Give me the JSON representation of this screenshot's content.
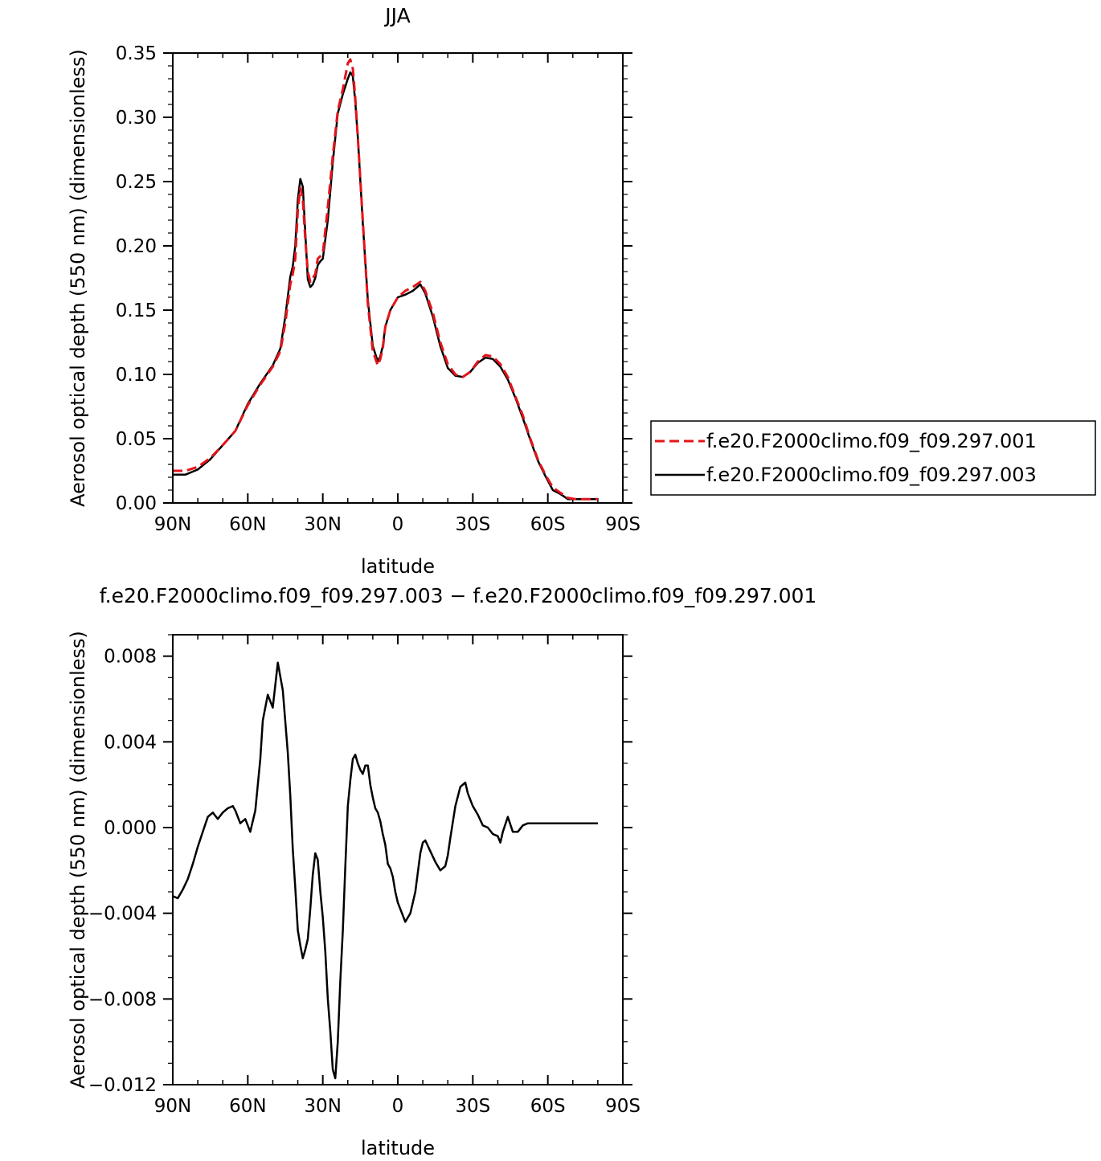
{
  "chart_data": [
    {
      "type": "line",
      "title": "JJA",
      "xlabel": "latitude",
      "ylabel": "Aerosol optical depth (550 nm) (dimensionless)",
      "xlim": [
        90,
        -90
      ],
      "ylim": [
        0,
        0.35
      ],
      "xtick_values": [
        90,
        60,
        30,
        0,
        -30,
        -60,
        -90
      ],
      "xtick_labels": [
        "90N",
        "60N",
        "30N",
        "0",
        "30S",
        "60S",
        "90S"
      ],
      "ytick_values": [
        0,
        0.05,
        0.1,
        0.15,
        0.2,
        0.25,
        0.3,
        0.35
      ],
      "ytick_labels": [
        "0.00",
        "0.05",
        "0.10",
        "0.15",
        "0.20",
        "0.25",
        "0.30",
        "0.35"
      ],
      "legend_position": "right",
      "series": [
        {
          "name": "f.e20.F2000climo.f09_f09.297.001",
          "color": "#e3141b",
          "dash": "dashed",
          "x": [
            90,
            85,
            80,
            75,
            70,
            65,
            60,
            55,
            50,
            47,
            45,
            43,
            42,
            41,
            40,
            39,
            38,
            37,
            36,
            35,
            34,
            33,
            32,
            31,
            30,
            28,
            26,
            24,
            22,
            20,
            19,
            18,
            17,
            16,
            14,
            12,
            10,
            8,
            7,
            6,
            5,
            3,
            0,
            -3,
            -6,
            -9,
            -11,
            -14,
            -17,
            -20,
            -23,
            -26,
            -29,
            -32,
            -35,
            -38,
            -41,
            -44,
            -47,
            -50,
            -53,
            -56,
            -59,
            -62,
            -65,
            -68,
            -71,
            -74,
            -77,
            -80
          ],
          "y": [
            0.025,
            0.025,
            0.028,
            0.035,
            0.045,
            0.056,
            0.076,
            0.092,
            0.106,
            0.118,
            0.14,
            0.17,
            0.178,
            0.19,
            0.228,
            0.245,
            0.236,
            0.205,
            0.18,
            0.172,
            0.175,
            0.178,
            0.19,
            0.192,
            0.194,
            0.23,
            0.27,
            0.305,
            0.322,
            0.342,
            0.345,
            0.338,
            0.315,
            0.285,
            0.22,
            0.155,
            0.118,
            0.107,
            0.112,
            0.12,
            0.137,
            0.15,
            0.16,
            0.165,
            0.168,
            0.172,
            0.165,
            0.148,
            0.125,
            0.108,
            0.1,
            0.098,
            0.102,
            0.11,
            0.115,
            0.114,
            0.108,
            0.098,
            0.083,
            0.068,
            0.05,
            0.034,
            0.022,
            0.012,
            0.008,
            0.004,
            0.003,
            0.003,
            0.003,
            0.003
          ]
        },
        {
          "name": "f.e20.F2000climo.f09_f09.297.003",
          "color": "#000000",
          "dash": "solid",
          "x": [
            90,
            85,
            80,
            75,
            70,
            65,
            60,
            55,
            50,
            47,
            45,
            43,
            42,
            41,
            40,
            39,
            38,
            37,
            36,
            35,
            34,
            33,
            32,
            31,
            30,
            28,
            26,
            24,
            22,
            20,
            19,
            18,
            17,
            16,
            14,
            12,
            10,
            8,
            7,
            6,
            5,
            3,
            0,
            -3,
            -6,
            -9,
            -11,
            -14,
            -17,
            -20,
            -23,
            -26,
            -29,
            -32,
            -35,
            -38,
            -41,
            -44,
            -47,
            -50,
            -53,
            -56,
            -59,
            -62,
            -65,
            -68,
            -71,
            -74,
            -77,
            -80
          ],
          "y": [
            0.022,
            0.022,
            0.026,
            0.034,
            0.045,
            0.056,
            0.077,
            0.093,
            0.107,
            0.12,
            0.145,
            0.176,
            0.184,
            0.2,
            0.236,
            0.252,
            0.246,
            0.21,
            0.174,
            0.168,
            0.17,
            0.175,
            0.185,
            0.188,
            0.19,
            0.22,
            0.265,
            0.303,
            0.318,
            0.33,
            0.335,
            0.332,
            0.312,
            0.285,
            0.218,
            0.158,
            0.122,
            0.11,
            0.114,
            0.122,
            0.137,
            0.15,
            0.16,
            0.162,
            0.165,
            0.17,
            0.163,
            0.145,
            0.122,
            0.105,
            0.099,
            0.098,
            0.102,
            0.109,
            0.113,
            0.112,
            0.106,
            0.096,
            0.082,
            0.066,
            0.049,
            0.033,
            0.021,
            0.01,
            0.007,
            0.003,
            0.003,
            0.003,
            0.003,
            0.003
          ]
        }
      ]
    },
    {
      "type": "line",
      "title": "f.e20.F2000climo.f09_f09.297.003 − f.e20.F2000climo.f09_f09.297.001",
      "xlabel": "latitude",
      "ylabel": "Aerosol optical depth (550 nm) (dimensionless)",
      "xlim": [
        90,
        -90
      ],
      "ylim": [
        -0.012,
        0.009
      ],
      "xtick_values": [
        90,
        60,
        30,
        0,
        -30,
        -60,
        -90
      ],
      "xtick_labels": [
        "90N",
        "60N",
        "30N",
        "0",
        "30S",
        "60S",
        "90S"
      ],
      "ytick_values": [
        -0.012,
        -0.008,
        -0.004,
        0,
        0.004,
        0.008
      ],
      "ytick_labels": [
        "−0.012",
        "−0.008",
        "−0.004",
        "0.000",
        "0.004",
        "0.008"
      ],
      "series": [
        {
          "color": "#000000",
          "dash": "solid",
          "x": [
            90,
            88,
            86,
            84,
            82,
            80,
            78,
            76,
            74,
            72,
            70,
            68,
            66,
            65,
            63,
            61,
            59,
            57,
            55,
            54,
            52,
            50,
            48,
            46,
            44,
            43,
            42,
            41,
            40,
            39,
            38,
            37,
            36,
            35,
            34,
            33,
            32,
            31,
            30,
            29,
            28,
            27,
            26,
            25,
            24,
            23,
            22,
            21,
            20,
            19,
            18,
            17,
            16,
            15,
            14,
            13,
            12,
            11,
            10,
            9,
            8,
            7,
            6,
            5,
            4,
            3,
            2,
            1,
            0,
            -1,
            -3,
            -5,
            -7,
            -9,
            -10,
            -11,
            -13,
            -15,
            -17,
            -19,
            -20,
            -21,
            -23,
            -25,
            -27,
            -28,
            -30,
            -32,
            -34,
            -36,
            -38,
            -40,
            -41,
            -42,
            -44,
            -46,
            -48,
            -50,
            -52,
            -53,
            -54,
            -56,
            -57,
            -59,
            -61,
            -63,
            -65,
            -67,
            -68,
            -69,
            -70,
            -71,
            -72,
            -73,
            -75,
            -77,
            -80
          ],
          "y": [
            -0.0032,
            -0.0033,
            -0.0029,
            -0.0024,
            -0.0017,
            -0.0009,
            -0.0002,
            0.0005,
            0.0007,
            0.0004,
            0.0007,
            0.0009,
            0.001,
            0.0008,
            0.0002,
            0.0004,
            -0.0002,
            0.0008,
            0.0032,
            0.005,
            0.0062,
            0.0056,
            0.0077,
            0.0064,
            0.0035,
            0.0015,
            -0.001,
            -0.0028,
            -0.0048,
            -0.0055,
            -0.0061,
            -0.0057,
            -0.0052,
            -0.0038,
            -0.0022,
            -0.0012,
            -0.0015,
            -0.003,
            -0.0042,
            -0.0058,
            -0.008,
            -0.0095,
            -0.0113,
            -0.0117,
            -0.01,
            -0.0072,
            -0.0048,
            -0.0018,
            0.001,
            0.0022,
            0.0032,
            0.0034,
            0.003,
            0.0027,
            0.0025,
            0.0029,
            0.0029,
            0.002,
            0.0014,
            0.0009,
            0.0007,
            0.0003,
            -0.0003,
            -0.0008,
            -0.0017,
            -0.0019,
            -0.0023,
            -0.003,
            -0.0035,
            -0.0038,
            -0.0044,
            -0.004,
            -0.003,
            -0.0012,
            -0.0007,
            -0.0006,
            -0.0011,
            -0.0016,
            -0.002,
            -0.0018,
            -0.0013,
            -0.0005,
            0.001,
            0.0019,
            0.0021,
            0.0016,
            0.001,
            0.0006,
            0.0001,
            0.0,
            -0.0003,
            -0.0004,
            -0.0007,
            -0.0002,
            0.0005,
            -0.0002,
            -0.0002,
            0.0001,
            0.0002,
            0.0002,
            0.0002,
            0.0002,
            0.0002,
            0.0002,
            0.0002,
            0.0002,
            0.0002,
            0.0002,
            0.0002,
            0.0002,
            0.0002,
            0.0002,
            0.0002,
            0.0002,
            0.0002,
            0.0002,
            0.0002
          ]
        }
      ]
    }
  ]
}
